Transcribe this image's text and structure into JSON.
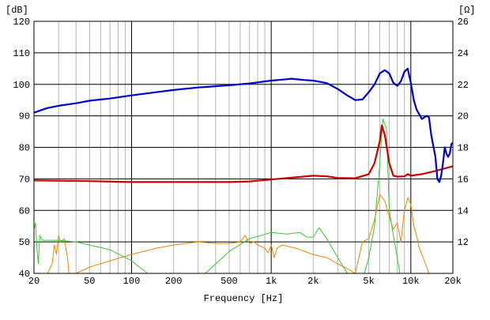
{
  "chart_data": {
    "type": "line",
    "xlabel": "Frequency [Hz]",
    "x_scale": "log",
    "xlim": [
      20,
      20000
    ],
    "x_ticks": [
      {
        "value": 20,
        "label": "20"
      },
      {
        "value": 50,
        "label": "50"
      },
      {
        "value": 100,
        "label": "100"
      },
      {
        "value": 200,
        "label": "200"
      },
      {
        "value": 500,
        "label": "500"
      },
      {
        "value": 1000,
        "label": "1k"
      },
      {
        "value": 2000,
        "label": "2k"
      },
      {
        "value": 5000,
        "label": "5k"
      },
      {
        "value": 10000,
        "label": "10k"
      },
      {
        "value": 20000,
        "label": "20k"
      }
    ],
    "y_left": {
      "unit_label": "[dB]",
      "ylim": [
        40,
        120
      ],
      "ticks": [
        "40",
        "50",
        "60",
        "70",
        "80",
        "90",
        "100",
        "110",
        "120"
      ]
    },
    "y_right": {
      "unit_label": "[Ω]",
      "ylim": [
        10,
        26
      ],
      "ticks": [
        "12",
        "14",
        "16",
        "18",
        "20",
        "22",
        "24",
        "26"
      ]
    },
    "grid": true,
    "legend": "none",
    "series": [
      {
        "axis": "left",
        "color": "#0000cc",
        "points": [
          [
            20,
            91
          ],
          [
            25,
            92.5
          ],
          [
            30,
            93.2
          ],
          [
            40,
            94
          ],
          [
            50,
            94.8
          ],
          [
            70,
            95.5
          ],
          [
            100,
            96.5
          ],
          [
            150,
            97.5
          ],
          [
            200,
            98.2
          ],
          [
            300,
            99
          ],
          [
            500,
            99.7
          ],
          [
            700,
            100.3
          ],
          [
            1000,
            101.2
          ],
          [
            1200,
            101.5
          ],
          [
            1400,
            101.8
          ],
          [
            1700,
            101.4
          ],
          [
            2000,
            101.2
          ],
          [
            2500,
            100.4
          ],
          [
            3000,
            98.5
          ],
          [
            3500,
            96.5
          ],
          [
            4000,
            95
          ],
          [
            4500,
            95.2
          ],
          [
            5000,
            97.5
          ],
          [
            5500,
            100
          ],
          [
            6000,
            103.5
          ],
          [
            6500,
            104.5
          ],
          [
            7000,
            103.5
          ],
          [
            7500,
            100.5
          ],
          [
            8000,
            99.5
          ],
          [
            8500,
            101
          ],
          [
            9000,
            104
          ],
          [
            9500,
            105
          ],
          [
            10000,
            100.5
          ],
          [
            10500,
            95
          ],
          [
            11000,
            92
          ],
          [
            12000,
            89
          ],
          [
            13000,
            90
          ],
          [
            13500,
            89.5
          ],
          [
            14000,
            84
          ],
          [
            15000,
            77
          ],
          [
            15500,
            70
          ],
          [
            16000,
            69
          ],
          [
            16500,
            71
          ],
          [
            17000,
            75
          ],
          [
            17500,
            80
          ],
          [
            18000,
            78
          ],
          [
            18500,
            77
          ],
          [
            19000,
            78
          ],
          [
            19500,
            81
          ],
          [
            20000,
            81.5
          ]
        ]
      },
      {
        "axis": "left",
        "color": "#cc0000",
        "points": [
          [
            20,
            69.5
          ],
          [
            50,
            69.3
          ],
          [
            100,
            69
          ],
          [
            200,
            69
          ],
          [
            500,
            69
          ],
          [
            700,
            69.2
          ],
          [
            1000,
            69.8
          ],
          [
            1500,
            70.5
          ],
          [
            2000,
            71
          ],
          [
            2500,
            70.8
          ],
          [
            3000,
            70.3
          ],
          [
            4000,
            70.2
          ],
          [
            5000,
            71.5
          ],
          [
            5500,
            75
          ],
          [
            6000,
            82
          ],
          [
            6200,
            87
          ],
          [
            6500,
            84
          ],
          [
            7000,
            75
          ],
          [
            7500,
            71
          ],
          [
            8000,
            70.7
          ],
          [
            9000,
            70.8
          ],
          [
            9500,
            71.5
          ],
          [
            10000,
            71
          ],
          [
            12000,
            71.5
          ],
          [
            15000,
            72.5
          ],
          [
            20000,
            74
          ]
        ]
      },
      {
        "axis": "left",
        "color": "#33cc33",
        "points": [
          [
            20,
            54
          ],
          [
            20.5,
            56
          ],
          [
            21,
            48
          ],
          [
            21.5,
            43
          ],
          [
            22,
            52
          ],
          [
            23,
            50.5
          ],
          [
            25,
            50.5
          ],
          [
            30,
            50.5
          ],
          [
            40,
            50
          ],
          [
            50,
            49
          ],
          [
            70,
            47.5
          ],
          [
            100,
            44
          ],
          [
            130,
            40
          ],
          [
            200,
            35
          ],
          [
            300,
            38
          ],
          [
            400,
            43
          ],
          [
            500,
            47
          ],
          [
            700,
            51
          ],
          [
            1000,
            53
          ],
          [
            1300,
            52.5
          ],
          [
            1600,
            53
          ],
          [
            1800,
            51.5
          ],
          [
            2000,
            51.5
          ],
          [
            2200,
            54.5
          ],
          [
            2500,
            51
          ],
          [
            3000,
            45
          ],
          [
            3500,
            40
          ],
          [
            4000,
            33
          ],
          [
            4500,
            38
          ],
          [
            5000,
            45
          ],
          [
            5500,
            55
          ],
          [
            6000,
            75
          ],
          [
            6300,
            89
          ],
          [
            6700,
            86
          ],
          [
            7000,
            60
          ],
          [
            7500,
            52
          ],
          [
            8000,
            45
          ],
          [
            8500,
            38
          ]
        ]
      },
      {
        "axis": "left",
        "color": "#ee8800",
        "points": [
          [
            20,
            38
          ],
          [
            25,
            40
          ],
          [
            27,
            43
          ],
          [
            28,
            49
          ],
          [
            29,
            46
          ],
          [
            30,
            52
          ],
          [
            31,
            50
          ],
          [
            33,
            51
          ],
          [
            35,
            44
          ],
          [
            36,
            37
          ],
          [
            40,
            40
          ],
          [
            50,
            42
          ],
          [
            70,
            44
          ],
          [
            100,
            46
          ],
          [
            150,
            48
          ],
          [
            200,
            49
          ],
          [
            300,
            50
          ],
          [
            400,
            49.5
          ],
          [
            500,
            49.5
          ],
          [
            600,
            50
          ],
          [
            650,
            52
          ],
          [
            700,
            49.5
          ],
          [
            750,
            50
          ],
          [
            800,
            49
          ],
          [
            900,
            48
          ],
          [
            950,
            46.5
          ],
          [
            1000,
            49
          ],
          [
            1050,
            45
          ],
          [
            1100,
            48
          ],
          [
            1200,
            49
          ],
          [
            1500,
            48
          ],
          [
            2000,
            46
          ],
          [
            2500,
            45
          ],
          [
            3000,
            43
          ],
          [
            3500,
            41.5
          ],
          [
            4000,
            40
          ],
          [
            4500,
            50
          ],
          [
            5000,
            51
          ],
          [
            5500,
            57
          ],
          [
            6000,
            65
          ],
          [
            6500,
            63
          ],
          [
            7000,
            58
          ],
          [
            7500,
            54
          ],
          [
            8000,
            56
          ],
          [
            8500,
            50
          ],
          [
            9000,
            60
          ],
          [
            9500,
            64
          ],
          [
            10000,
            62
          ],
          [
            10500,
            55
          ],
          [
            11000,
            52
          ],
          [
            11500,
            48
          ],
          [
            12000,
            46
          ],
          [
            13000,
            42
          ],
          [
            14000,
            38
          ]
        ]
      }
    ]
  }
}
